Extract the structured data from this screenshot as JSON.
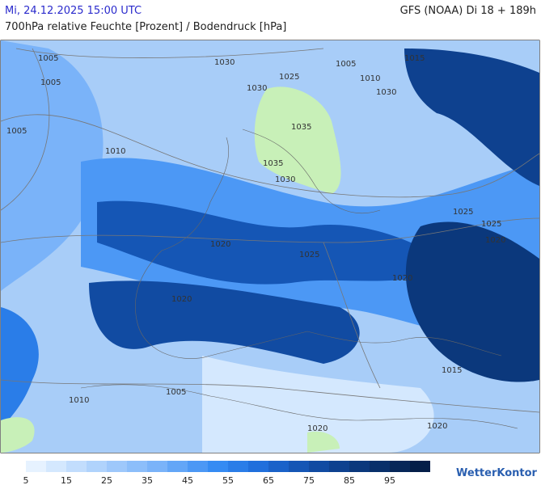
{
  "header": {
    "datetime": "Mi, 24.12.2025 15:00 UTC",
    "model": "GFS (NOAA) Di 18 + 189h",
    "title": "700hPa relative Feuchte [Prozent] / Bodendruck [hPa]"
  },
  "map": {
    "isobar_labels": [
      "1030",
      "1005",
      "1015",
      "1025",
      "1030",
      "1010",
      "1005",
      "1005",
      "1035",
      "1030",
      "1010",
      "1005",
      "1025",
      "1030",
      "1035",
      "1025",
      "1025",
      "1020",
      "1020",
      "1005",
      "1010",
      "1015",
      "1020",
      "1020",
      "1020",
      "1020"
    ]
  },
  "legend": {
    "ticks": [
      5,
      15,
      25,
      35,
      45,
      55,
      65,
      75,
      85,
      95
    ],
    "colors": [
      "#e6f2ff",
      "#d4e8fe",
      "#c2ddfd",
      "#b0d3fc",
      "#9ec8fb",
      "#8cbefa",
      "#7ab3f9",
      "#63a6f7",
      "#4c98f5",
      "#358bf3",
      "#2a7de8",
      "#206fdc",
      "#1a62c9",
      "#1556b5",
      "#114ba2",
      "#0e418f",
      "#0b387c",
      "#082f6a",
      "#062658",
      "#041e48"
    ]
  },
  "logo": "WetterKontor"
}
